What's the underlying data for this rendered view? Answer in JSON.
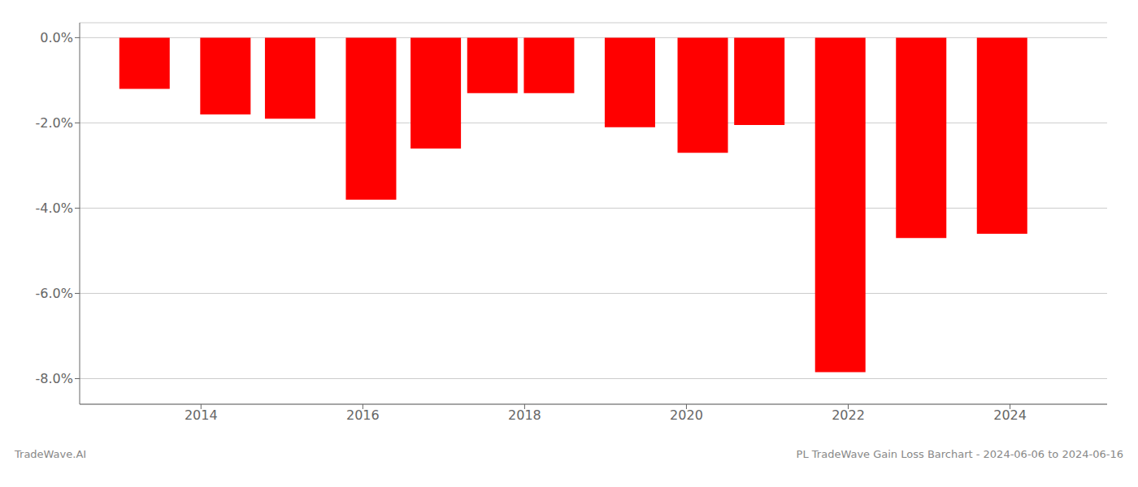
{
  "chart_data": {
    "type": "bar",
    "x": [
      2013.3,
      2014.3,
      2015.1,
      2016.1,
      2016.9,
      2017.6,
      2018.3,
      2019.3,
      2020.2,
      2020.9,
      2021.9,
      2022.9,
      2023.9
    ],
    "values": [
      -1.2,
      -1.8,
      -1.9,
      -3.8,
      -2.6,
      -1.3,
      -1.3,
      -2.1,
      -2.7,
      -2.05,
      -7.85,
      -4.7,
      -4.6
    ],
    "color": "#ff0000",
    "xlim": [
      2012.5,
      2025.2
    ],
    "xticks": [
      2014,
      2016,
      2018,
      2020,
      2022,
      2024
    ],
    "ylim": [
      -8.6,
      0.35
    ],
    "yticks": [
      {
        "value": 0.0,
        "label": "0.0%"
      },
      {
        "value": -2.0,
        "label": "-2.0%"
      },
      {
        "value": -4.0,
        "label": "-4.0%"
      },
      {
        "value": -6.0,
        "label": "-6.0%"
      },
      {
        "value": -8.0,
        "label": "-8.0%"
      }
    ],
    "grid": true,
    "annotations": [
      "TradeWave.AI",
      "PL TradeWave Gain Loss Barchart - 2024-06-06 to 2024-06-16"
    ]
  }
}
